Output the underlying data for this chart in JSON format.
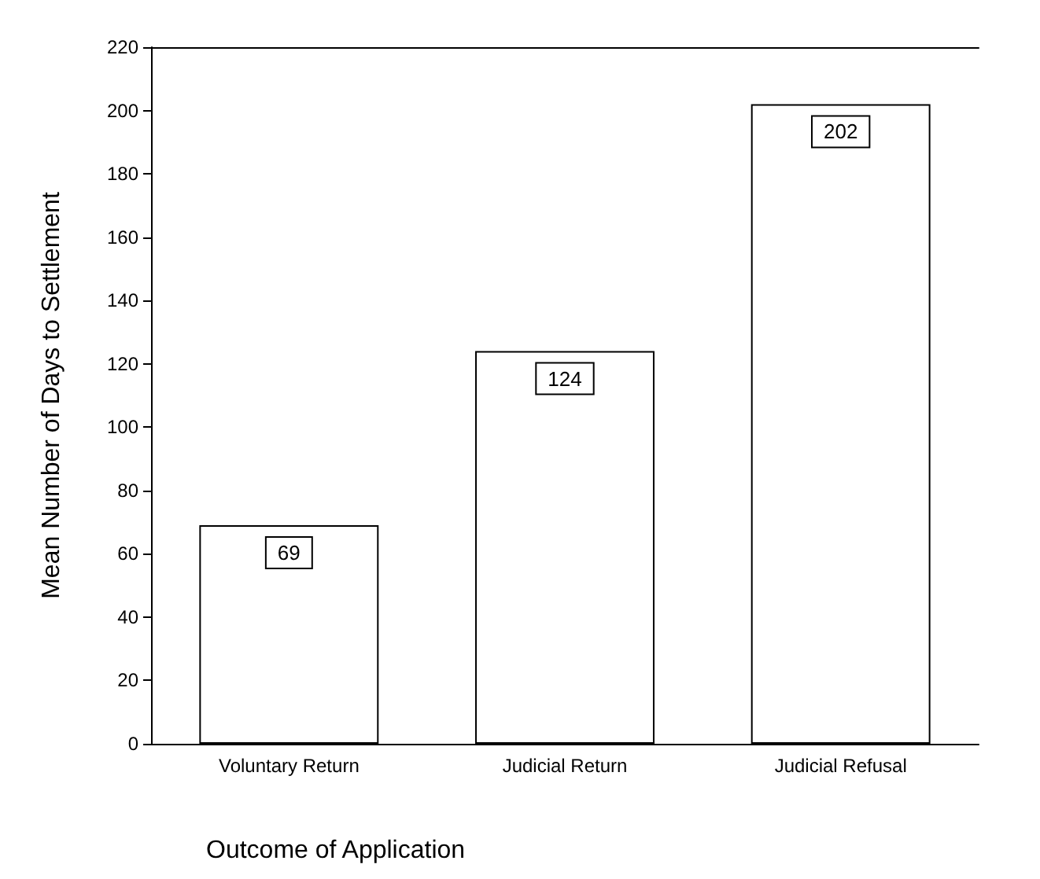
{
  "chart_data": {
    "type": "bar",
    "xlabel": "Outcome of Application",
    "ylabel": "Mean Number of Days to Settlement",
    "categories": [
      "Voluntary Return",
      "Judicial Return",
      "Judicial Refusal"
    ],
    "values": [
      69,
      124,
      202
    ],
    "color": "#ffffff",
    "ylim": [
      0,
      220
    ],
    "yticks": [
      0,
      20,
      40,
      60,
      80,
      100,
      120,
      140,
      160,
      180,
      200,
      220
    ],
    "grid": false,
    "data_labels": true
  }
}
